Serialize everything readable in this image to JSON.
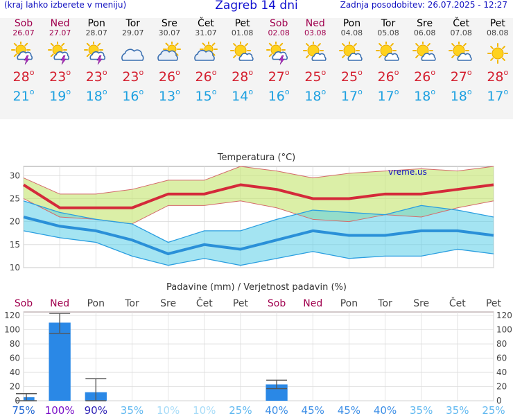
{
  "header": {
    "menu_hint": "(kraj lahko izberete v meniju)",
    "title": "Zagreb 14 dni",
    "updated": "Zadnja posodobitev: 26.07.2025 - 12:27"
  },
  "days": [
    {
      "name": "Sob",
      "date": "26.07",
      "weekend": true,
      "icon": "sun-cloud-thunder-icon",
      "tmax": "28",
      "tmin": "21"
    },
    {
      "name": "Ned",
      "date": "27.07",
      "weekend": true,
      "icon": "sun-cloud-thunder-icon",
      "tmax": "23",
      "tmin": "19"
    },
    {
      "name": "Pon",
      "date": "28.07",
      "weekend": false,
      "icon": "sun-cloud-thunder-icon",
      "tmax": "23",
      "tmin": "18"
    },
    {
      "name": "Tor",
      "date": "29.07",
      "weekend": false,
      "icon": "cloud-icon",
      "tmax": "23",
      "tmin": "16"
    },
    {
      "name": "Sre",
      "date": "30.07",
      "weekend": false,
      "icon": "sun-cloud-icon",
      "tmax": "26",
      "tmin": "13"
    },
    {
      "name": "Čet",
      "date": "31.07",
      "weekend": false,
      "icon": "sun-cloud-icon",
      "tmax": "26",
      "tmin": "15"
    },
    {
      "name": "Pet",
      "date": "01.08",
      "weekend": false,
      "icon": "sun-small-cloud-icon",
      "tmax": "28",
      "tmin": "14"
    },
    {
      "name": "Sob",
      "date": "02.08",
      "weekend": true,
      "icon": "sun-cloud-thunder-icon",
      "tmax": "27",
      "tmin": "16"
    },
    {
      "name": "Ned",
      "date": "03.08",
      "weekend": true,
      "icon": "sun-small-cloud-icon",
      "tmax": "25",
      "tmin": "18"
    },
    {
      "name": "Pon",
      "date": "04.08",
      "weekend": false,
      "icon": "sun-small-cloud-icon",
      "tmax": "25",
      "tmin": "17"
    },
    {
      "name": "Tor",
      "date": "05.08",
      "weekend": false,
      "icon": "sun-small-cloud-icon",
      "tmax": "26",
      "tmin": "17"
    },
    {
      "name": "Sre",
      "date": "06.08",
      "weekend": false,
      "icon": "sun-small-cloud-icon",
      "tmax": "26",
      "tmin": "18"
    },
    {
      "name": "Čet",
      "date": "07.08",
      "weekend": false,
      "icon": "sun-small-cloud-icon",
      "tmax": "27",
      "tmin": "18"
    },
    {
      "name": "Pet",
      "date": "08.08",
      "weekend": false,
      "icon": "sun-icon",
      "tmax": "28",
      "tmin": "17"
    }
  ],
  "colors": {
    "weekend": "#a0004e",
    "tmax": "#d42030",
    "tmin": "#1da0e0",
    "precip_bar": "#2a88e6"
  },
  "chart_data": [
    {
      "type": "area",
      "title": "Temperatura (°C)",
      "watermark": "vreme.us",
      "ylim": [
        10,
        32
      ],
      "yticks": [
        10,
        15,
        20,
        25,
        30
      ],
      "x": [
        "26.07",
        "27.07",
        "28.07",
        "29.07",
        "30.07",
        "31.07",
        "01.08",
        "02.08",
        "03.08",
        "04.08",
        "05.08",
        "06.08",
        "07.08",
        "08.08"
      ],
      "series": [
        {
          "name": "tmax",
          "values": [
            28,
            23,
            23,
            23,
            26,
            26,
            28,
            27,
            25,
            25,
            26,
            26,
            27,
            28
          ]
        },
        {
          "name": "tmax_upper",
          "values": [
            29.5,
            26,
            26,
            27,
            29,
            29,
            32,
            31,
            29.5,
            30.5,
            31,
            31.5,
            31,
            32
          ]
        },
        {
          "name": "tmax_lower",
          "values": [
            25,
            21,
            20.5,
            19.5,
            23.5,
            23.5,
            24.5,
            23,
            20.5,
            20,
            21.5,
            21,
            23,
            24.5
          ]
        },
        {
          "name": "tmin",
          "values": [
            21,
            19,
            18,
            16,
            13,
            15,
            14,
            16,
            18,
            17,
            17,
            18,
            18,
            17
          ]
        },
        {
          "name": "tmin_upper",
          "values": [
            24.5,
            22,
            20.5,
            19.5,
            15.5,
            18,
            18,
            20.5,
            22.5,
            22,
            21.5,
            23.5,
            22.5,
            21
          ]
        },
        {
          "name": "tmin_lower",
          "values": [
            18,
            16.5,
            15.5,
            12.5,
            10.5,
            12,
            10.5,
            12,
            13.5,
            12,
            12.5,
            12.5,
            14,
            13
          ]
        }
      ]
    },
    {
      "type": "bar",
      "title": "Padavine (mm) / Verjetnost padavin (%)",
      "ylim": [
        0,
        125
      ],
      "yticks": [
        0,
        20,
        40,
        60,
        80,
        100,
        120
      ],
      "categories": [
        "Sob",
        "Ned",
        "Pon",
        "Tor",
        "Sre",
        "Čet",
        "Pet",
        "Sob",
        "Ned",
        "Pon",
        "Tor",
        "Sre",
        "Čet",
        "Pet"
      ],
      "weekend": [
        true,
        true,
        false,
        false,
        false,
        false,
        false,
        true,
        true,
        false,
        false,
        false,
        false,
        false
      ],
      "values": [
        5,
        110,
        12,
        0,
        0,
        0,
        0,
        23,
        0,
        0,
        0,
        0,
        0,
        0
      ],
      "err_low": [
        0,
        95,
        0,
        0,
        0,
        0,
        0,
        17,
        0,
        0,
        0,
        0,
        0,
        0
      ],
      "err_high": [
        10,
        123,
        31,
        0,
        0,
        0,
        0,
        29,
        0,
        0,
        0,
        0,
        0,
        0
      ],
      "probability": [
        "75%",
        "100%",
        "90%",
        "35%",
        "10%",
        "10%",
        "25%",
        "40%",
        "45%",
        "45%",
        "40%",
        "35%",
        "35%",
        "25%"
      ],
      "probability_colors": [
        "#1e64d2",
        "#7a10c8",
        "#2a1eb4",
        "#60b8f0",
        "#a8dcf8",
        "#a8dcf8",
        "#60b8f0",
        "#3c8ee6",
        "#3c8ee6",
        "#3c8ee6",
        "#3c8ee6",
        "#60b8f0",
        "#60b8f0",
        "#60b8f0"
      ]
    }
  ]
}
